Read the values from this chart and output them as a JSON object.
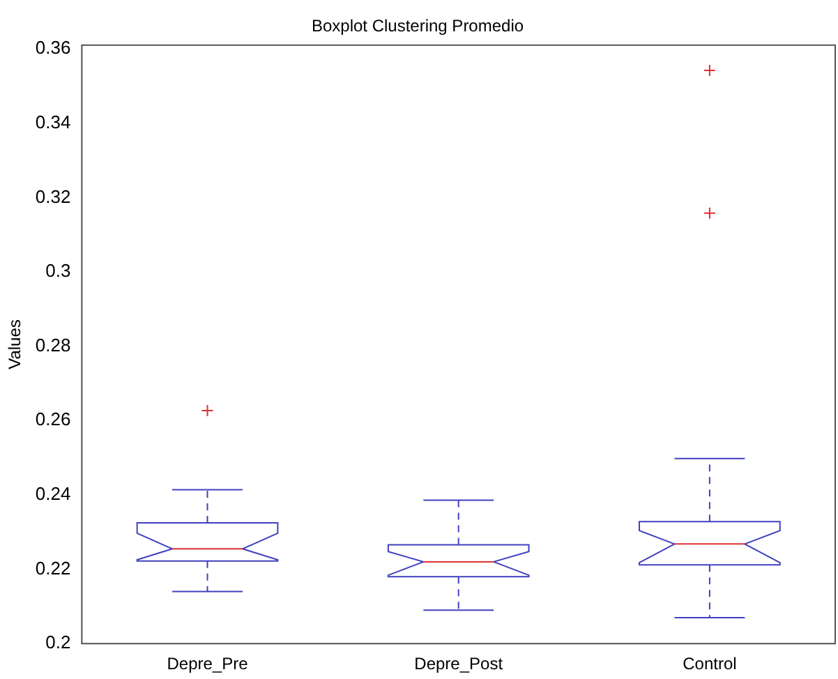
{
  "chart_data": {
    "type": "box",
    "title": "Boxplot Clustering Promedio",
    "ylabel": "Values",
    "categories": [
      "Depre_Pre",
      "Depre_Post",
      "Control"
    ],
    "series": [
      {
        "color": "#4040c0",
        "boxes": [
          {
            "low": 0.214,
            "q1": 0.2222,
            "median": 0.2255,
            "q3": 0.2325,
            "high": 0.2414,
            "outliers": [
              0.2627
            ]
          },
          {
            "low": 0.209,
            "q1": 0.218,
            "median": 0.222,
            "q3": 0.2266,
            "high": 0.2386
          },
          {
            "low": 0.207,
            "q1": 0.2212,
            "median": 0.2268,
            "q3": 0.2328,
            "high": 0.2498,
            "outliers": [
              0.3158,
              0.3542
            ]
          }
        ]
      }
    ],
    "ylim": [
      0.2,
      0.361
    ],
    "yticks": [
      0.2,
      0.22,
      0.24,
      0.26,
      0.28,
      0.3,
      0.32,
      0.34,
      0.36
    ],
    "grid": false,
    "legend": false,
    "marker": "cross"
  }
}
